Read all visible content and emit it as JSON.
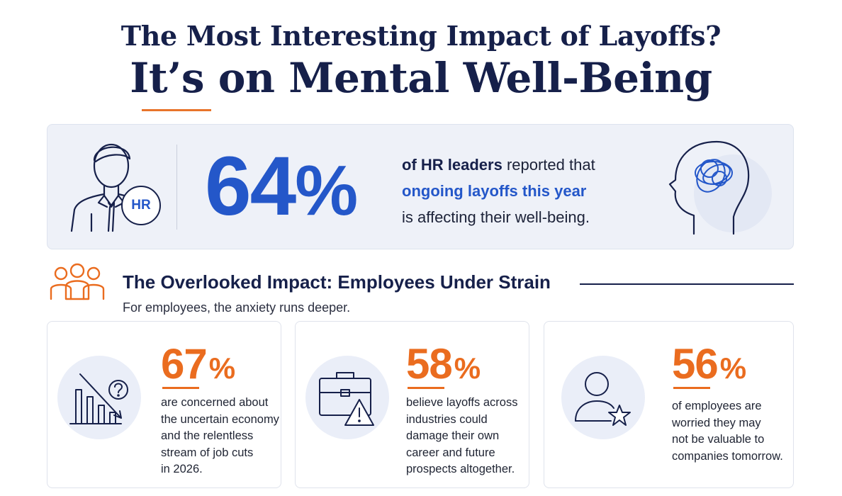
{
  "title": {
    "line1": "The Most Interesting Impact of Layoffs?",
    "line2": "It’s on Mental Well-Being"
  },
  "hero": {
    "badge": "HR",
    "stat_number": "64",
    "stat_unit": "%",
    "line1_bold": "of HR leaders",
    "line1_rest": " reported that",
    "line2_highlight": "ongoing layoffs this year",
    "line3": "is affecting their well-being.",
    "icons": [
      "hr-person-icon",
      "head-brain-icon"
    ]
  },
  "section": {
    "title": "The Overlooked Impact: Employees Under Strain",
    "subtitle": "For employees, the anxiety runs deeper.",
    "icon": "people-group-icon"
  },
  "cards": [
    {
      "value": "67",
      "unit": "%",
      "text": "are concerned about\nthe uncertain economy\nand the relentless\nstream of job cuts\nin 2026.",
      "icon": "declining-chart-question-icon"
    },
    {
      "value": "58",
      "unit": "%",
      "text": "believe layoffs across\nindustries could\ndamage their own\ncareer and future\nprospects altogether.",
      "icon": "briefcase-warning-icon"
    },
    {
      "value": "56",
      "unit": "%",
      "text": "of employees are\nworried they may\nnot be valuable to\ncompanies tomorrow.",
      "icon": "person-star-icon"
    }
  ],
  "colors": {
    "navy": "#16204a",
    "blue": "#2457c9",
    "orange": "#ea6c1f",
    "panel": "#eef1f8"
  }
}
